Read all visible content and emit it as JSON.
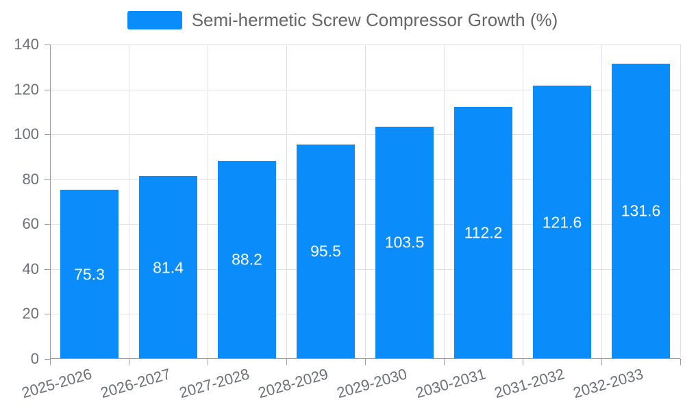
{
  "legend": {
    "items": [
      {
        "label": "Semi-hermetic Screw Compressor Growth (%)",
        "swatch_color": "#0a8cfa"
      }
    ]
  },
  "chart_data": {
    "type": "bar",
    "title": "Semi-hermetic Screw Compressor Growth (%)",
    "series_name": "Semi-hermetic Screw Compressor Growth (%)",
    "categories": [
      "2025-2026",
      "2026-2027",
      "2027-2028",
      "2028-2029",
      "2029-2030",
      "2030-2031",
      "2031-2032",
      "2032-2033"
    ],
    "values": [
      75.3,
      81.4,
      88.2,
      95.5,
      103.5,
      112.2,
      121.6,
      131.6
    ],
    "bar_labels": [
      "75.3",
      "81.4",
      "88.2",
      "95.5",
      "103.5",
      "112.2",
      "121.6",
      "131.6"
    ],
    "xlabel": "",
    "ylabel": "",
    "ylim": [
      0,
      140
    ],
    "yticks": [
      0,
      20,
      40,
      60,
      80,
      100,
      120,
      140
    ],
    "grid": true,
    "grid_vertical": true,
    "legend_position": "top-center",
    "x_tick_rotation_deg": -16,
    "bar_label_position": "inside-center"
  },
  "colors": {
    "background": "#ffffff",
    "bar": "#0a8cfa",
    "axis_line": "#999999",
    "grid_line": "#e0e0e6",
    "tick_label": "#6e7079",
    "legend_text": "#666666",
    "bar_label": "#ffffff"
  }
}
